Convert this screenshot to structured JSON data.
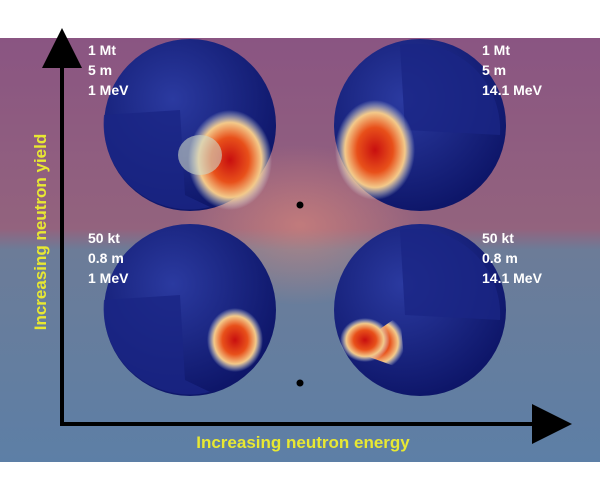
{
  "panels": [
    {
      "yield": "1 Mt",
      "distance": "5 m",
      "energy": "1 MeV"
    },
    {
      "yield": "1 Mt",
      "distance": "5 m",
      "energy": "14.1 MeV"
    },
    {
      "yield": "50 kt",
      "distance": "0.8 m",
      "energy": "1 MeV"
    },
    {
      "yield": "50 kt",
      "distance": "0.8 m",
      "energy": "14.1 MeV"
    }
  ],
  "axes": {
    "y": "Increasing neutron yield",
    "x": "Increasing neutron energy"
  }
}
